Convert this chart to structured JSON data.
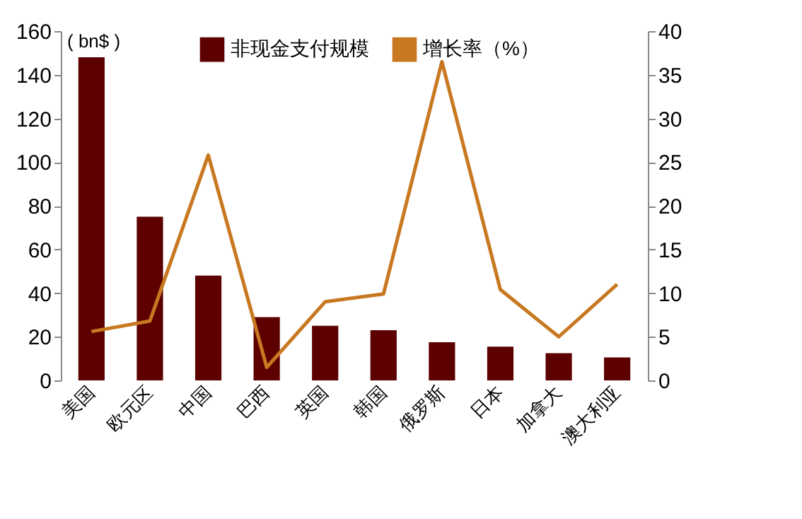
{
  "chart_data": {
    "type": "bar",
    "ylabel": "( bn$ )",
    "categories": [
      "美国",
      "欧元区",
      "中国",
      "巴西",
      "英国",
      "韩国",
      "俄罗斯",
      "日本",
      "加拿大",
      "澳大利亚"
    ],
    "series": [
      {
        "name": "非现金支付规模",
        "color": "#5c0000",
        "values": [
          148,
          75,
          48,
          29,
          25,
          23,
          17.5,
          15.5,
          12.5,
          10.5
        ]
      },
      {
        "name": "增长率（%）",
        "type": "line",
        "axis": "y2",
        "color": "#c87820",
        "values": [
          5.6,
          6.8,
          25.8,
          1.5,
          9,
          9.9,
          36.5,
          10.4,
          5,
          11
        ]
      }
    ],
    "ylim": [
      0,
      160
    ],
    "yticks": [
      0,
      20,
      40,
      60,
      80,
      100,
      120,
      140,
      160
    ],
    "y2lim": [
      0,
      40
    ],
    "y2ticks": [
      0,
      5,
      10,
      15,
      20,
      25,
      30,
      35,
      40
    ],
    "grid": false,
    "legend": "top"
  }
}
